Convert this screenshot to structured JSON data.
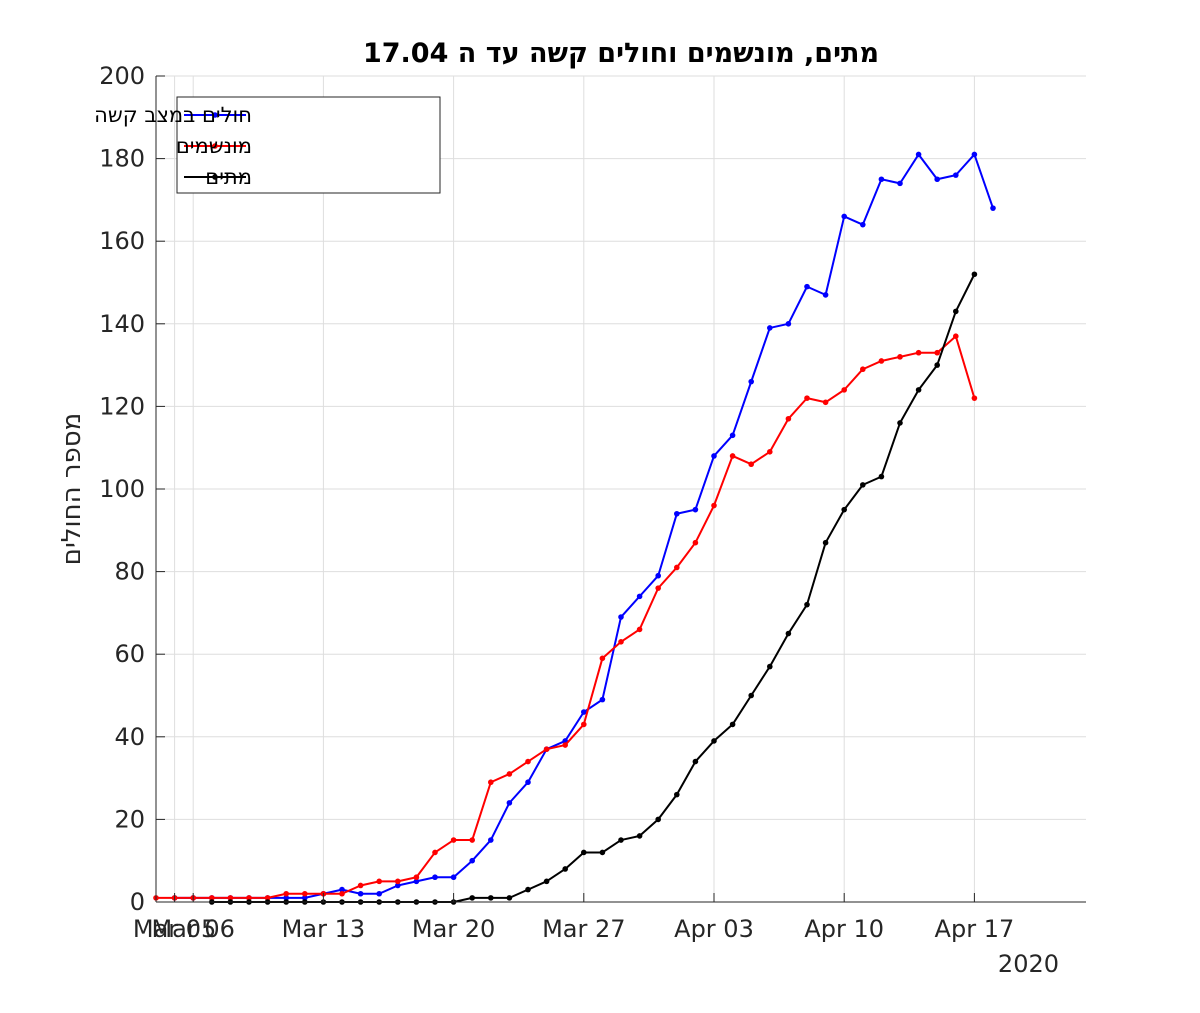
{
  "chart_data": {
    "type": "line",
    "title": "מתים, מונשמים וחולים קשה עד ה 17.04",
    "ylabel": "מספר החולים",
    "xlabel": "",
    "year_label": "2020",
    "ylim": [
      0,
      200
    ],
    "yticks": [
      0,
      20,
      40,
      60,
      80,
      100,
      120,
      140,
      160,
      180,
      200
    ],
    "xlim": [
      "2020-03-04",
      "2020-04-23"
    ],
    "xticks": [
      {
        "date": "2020-03-05",
        "label": "Mar 05"
      },
      {
        "date": "2020-03-06",
        "label": "Mar 06"
      },
      {
        "date": "2020-03-13",
        "label": "Mar 13"
      },
      {
        "date": "2020-03-20",
        "label": "Mar 20"
      },
      {
        "date": "2020-03-27",
        "label": "Mar 27"
      },
      {
        "date": "2020-04-03",
        "label": "Apr 03"
      },
      {
        "date": "2020-04-10",
        "label": "Apr 10"
      },
      {
        "date": "2020-04-17",
        "label": "Apr 17"
      }
    ],
    "grid": true,
    "legend_position": "top-left",
    "series": [
      {
        "name": "חולים במצב קשה",
        "color": "#0000ff",
        "start_date": "2020-03-05",
        "values": [
          1,
          1,
          1,
          1,
          1,
          1,
          1,
          1,
          2,
          3,
          2,
          2,
          4,
          5,
          6,
          6,
          10,
          15,
          24,
          29,
          37,
          39,
          46,
          49,
          69,
          74,
          79,
          94,
          95,
          108,
          113,
          126,
          139,
          140,
          149,
          147,
          166,
          164,
          175,
          174,
          181,
          175,
          176,
          181,
          168
        ]
      },
      {
        "name": "מונשמים",
        "color": "#ff0000",
        "start_date": "2020-03-04",
        "values": [
          1,
          1,
          1,
          1,
          1,
          1,
          1,
          2,
          2,
          2,
          2,
          4,
          5,
          5,
          6,
          12,
          15,
          15,
          29,
          31,
          34,
          37,
          38,
          43,
          59,
          63,
          66,
          76,
          81,
          87,
          96,
          108,
          106,
          109,
          117,
          122,
          121,
          124,
          129,
          131,
          132,
          133,
          133,
          137,
          122
        ]
      },
      {
        "name": "מתים",
        "color": "#000000",
        "start_date": "2020-03-07",
        "values": [
          0,
          0,
          0,
          0,
          0,
          0,
          0,
          0,
          0,
          0,
          0,
          0,
          0,
          0,
          1,
          1,
          1,
          3,
          5,
          8,
          12,
          12,
          15,
          16,
          20,
          26,
          34,
          39,
          43,
          50,
          57,
          65,
          72,
          87,
          95,
          101,
          103,
          116,
          124,
          130,
          143,
          152
        ]
      }
    ]
  }
}
